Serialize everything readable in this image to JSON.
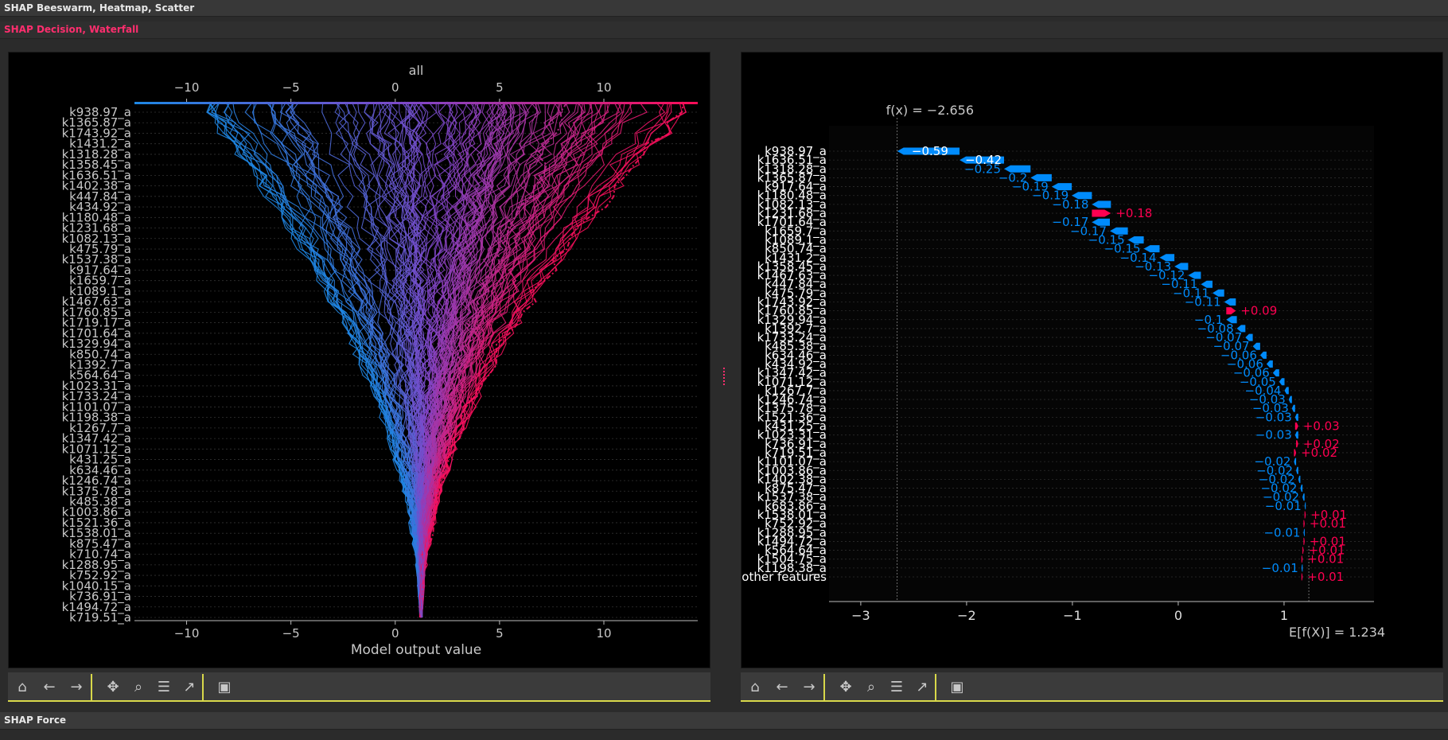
{
  "sections": {
    "beeswarm_title": "SHAP Beeswarm, Heatmap, Scatter",
    "decision_title": "SHAP Decision, Waterfall",
    "force_title": "SHAP Force"
  },
  "toolbar_buttons": [
    {
      "name": "home",
      "icon": "home-icon",
      "glyph": "⌂"
    },
    {
      "name": "back",
      "icon": "arrow-left-icon",
      "glyph": "←"
    },
    {
      "name": "forward",
      "icon": "arrow-right-icon",
      "glyph": "→"
    },
    {
      "name": "pan",
      "icon": "move-icon",
      "glyph": "✥"
    },
    {
      "name": "zoom",
      "icon": "zoom-icon",
      "glyph": "⌕"
    },
    {
      "name": "configure",
      "icon": "sliders-icon",
      "glyph": "☰"
    },
    {
      "name": "edit-curves",
      "icon": "chart-line-icon",
      "glyph": "↗"
    },
    {
      "name": "save",
      "icon": "save-icon",
      "glyph": "▣"
    }
  ],
  "chart_data": [
    {
      "type": "line",
      "chart_kind": "shap-decision",
      "title": "all",
      "xlabel": "Model output value",
      "xlim": [
        -12.5,
        14.5
      ],
      "xticks": [
        -10,
        -5,
        0,
        5,
        10
      ],
      "xtick_labels": [
        "−10",
        "−5",
        "0",
        "5",
        "10"
      ],
      "base_value": 1.234,
      "colormap": [
        "#1e88e5",
        "#ff0d57"
      ],
      "features": [
        "k938.97_a",
        "k1365.87_a",
        "k1743.92_a",
        "k1431.2_a",
        "k1318.28_a",
        "k1358.45_a",
        "k1636.51_a",
        "k1402.38_a",
        "k447.84_a",
        "k434.92_a",
        "k1180.48_a",
        "k1231.68_a",
        "k1082.13_a",
        "k475.79_a",
        "k1537.38_a",
        "k917.64_a",
        "k1659.7_a",
        "k1089.1_a",
        "k1467.63_a",
        "k1760.85_a",
        "k1719.17_a",
        "k1701.64_a",
        "k1329.94_a",
        "k850.74_a",
        "k1392.7_a",
        "k564.64_a",
        "k1023.31_a",
        "k1733.24_a",
        "k1101.07_a",
        "k1198.38_a",
        "k1267.7_a",
        "k1347.42_a",
        "k1071.12_a",
        "k431.25_a",
        "k634.46_a",
        "k1246.74_a",
        "k1375.78_a",
        "k485.38_a",
        "k1003.86_a",
        "k1521.36_a",
        "k1538.01_a",
        "k875.47_a",
        "k710.74_a",
        "k1288.95_a",
        "k752.92_a",
        "k1040.15_a",
        "k736.91_a",
        "k1494.72_a",
        "k719.51_a"
      ]
    },
    {
      "type": "bar",
      "chart_kind": "shap-waterfall",
      "fx_label": "f(x) = −2.656",
      "fx_value": -2.656,
      "efx_label": "E[f(X)] = 1.234",
      "efx_value": 1.234,
      "xlim": [
        -3.3,
        1.85
      ],
      "xticks": [
        -3,
        -2,
        -1,
        0,
        1
      ],
      "xtick_labels": [
        "−3",
        "−2",
        "−1",
        "0",
        "1"
      ],
      "colors": {
        "negative": "#008bfb",
        "positive": "#ff0051"
      },
      "features": [
        "k938.97_a",
        "k1636.51_a",
        "k1318.28_a",
        "k1365.87_a",
        "k917.64_a",
        "k1180.48_a",
        "k1082.13_a",
        "k1231.68_a",
        "k1701.64_a",
        "k1659.7_a",
        "k1089.1_a",
        "k850.74_a",
        "k1431.2_a",
        "k1358.45_a",
        "k1467.63_a",
        "k447.84_a",
        "k475.79_a",
        "k1743.92_a",
        "k1760.85_a",
        "k1329.94_a",
        "k1392.7_a",
        "k1733.24_a",
        "k485.38_a",
        "k634.46_a",
        "k434.92_a",
        "k1347.42_a",
        "k1071.12_a",
        "k1267.7_a",
        "k1246.74_a",
        "k1375.78_a",
        "k1521.36_a",
        "k431.25_a",
        "k1023.31_a",
        "k736.91_a",
        "k719.51_a",
        "k1101.07_a",
        "k1003.86_a",
        "k1402.38_a",
        "k875.47_a",
        "k1537.38_a",
        "k683.86_a",
        "k1538.01_a",
        "k752.92_a",
        "k1288.95_a",
        "k1494.72_a",
        "k564.64_a",
        "k1504.75_a",
        "k1198.38_a",
        "other features"
      ],
      "values": [
        -0.59,
        -0.42,
        -0.25,
        -0.2,
        -0.19,
        -0.19,
        -0.18,
        0.18,
        -0.17,
        -0.17,
        -0.15,
        -0.15,
        -0.14,
        -0.13,
        -0.12,
        -0.11,
        -0.11,
        -0.11,
        0.09,
        -0.1,
        -0.08,
        -0.07,
        -0.07,
        -0.06,
        -0.06,
        -0.06,
        -0.05,
        -0.04,
        -0.03,
        -0.03,
        -0.03,
        0.03,
        -0.03,
        0.02,
        0.02,
        -0.02,
        -0.02,
        -0.02,
        -0.02,
        -0.02,
        -0.01,
        0.01,
        0.01,
        -0.01,
        0.01,
        0.01,
        0.01,
        -0.01,
        0.01
      ],
      "value_labels": [
        "−0.59",
        "−0.42",
        "−0.25",
        "−0.2",
        "−0.19",
        "−0.19",
        "−0.18",
        "+0.18",
        "−0.17",
        "−0.17",
        "−0.15",
        "−0.15",
        "−0.14",
        "−0.13",
        "−0.12",
        "−0.11",
        "−0.11",
        "−0.11",
        "+0.09",
        "−0.1",
        "−0.08",
        "−0.07",
        "−0.07",
        "−0.06",
        "−0.06",
        "−0.06",
        "−0.05",
        "−0.04",
        "−0.03",
        "−0.03",
        "−0.03",
        "+0.03",
        "−0.03",
        "+0.02",
        "+0.02",
        "−0.02",
        "−0.02",
        "−0.02",
        "−0.02",
        "−0.02",
        "−0.01",
        "+0.01",
        "+0.01",
        "−0.01",
        "+0.01",
        "+0.01",
        "+0.01",
        "−0.01",
        "+0.01"
      ]
    }
  ]
}
